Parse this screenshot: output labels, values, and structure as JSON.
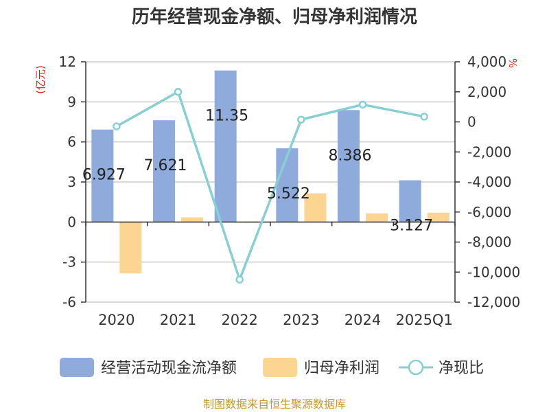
{
  "chart_data": {
    "type": "bar",
    "title": "历年经营现金净额、归母净利润情况",
    "categories": [
      "2020",
      "2021",
      "2022",
      "2023",
      "2024",
      "2025Q1"
    ],
    "series": [
      {
        "name": "经营活动现金流净额",
        "axis": "left",
        "type": "bar",
        "color": "#8eabdb",
        "values": [
          6.927,
          7.621,
          11.35,
          5.522,
          8.386,
          3.127
        ],
        "labels": [
          "6.927",
          "7.621",
          "11.35",
          "5.522",
          "8.386",
          "3.127"
        ]
      },
      {
        "name": "归母净利润",
        "axis": "left",
        "type": "bar",
        "color": "#fdd593",
        "values": [
          -3.85,
          0.35,
          -0.05,
          2.15,
          0.65,
          0.7
        ]
      },
      {
        "name": "净现比",
        "axis": "right",
        "type": "line",
        "color": "#86d0d4",
        "values": [
          -300,
          2000,
          -10500,
          150,
          1150,
          350
        ]
      }
    ],
    "y_left": {
      "unit": "(亿元)",
      "min": -6,
      "max": 12,
      "ticks": [
        "12",
        "9",
        "6",
        "3",
        "0",
        "-3",
        "-6"
      ]
    },
    "y_right": {
      "unit": "%",
      "min": -12000,
      "max": 4000,
      "ticks": [
        "4,000",
        "2,000",
        "0",
        "-2,000",
        "-4,000",
        "-6,000",
        "-8,000",
        "-10,000",
        "-12,000"
      ]
    },
    "legend_position": "bottom",
    "grid": true,
    "source": "制图数据来自恒生聚源数据库"
  }
}
